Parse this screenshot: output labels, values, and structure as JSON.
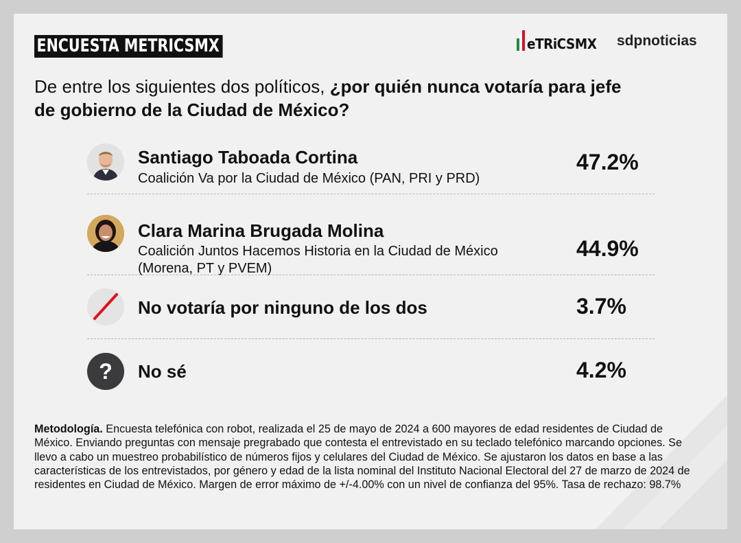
{
  "header": {
    "survey_label": "ENCUESTA METRICSMX",
    "brand_metrics": "eTRiCSMX",
    "brand_sdp": "sdpnoticias"
  },
  "question": {
    "lead": "De entre los siguientes dos políticos, ",
    "emphasis": "¿por quién nunca votaría para jefe de gobierno de la Ciudad de México?"
  },
  "options": [
    {
      "name": "Santiago Taboada Cortina",
      "coalition": "Coalición Va por la Ciudad de México (PAN, PRI y PRD)",
      "percent": "47.2%",
      "icon": "candidate-photo-icon"
    },
    {
      "name": "Clara Marina Brugada Molina",
      "coalition": "Coalición Juntos Hacemos Historia en la Ciudad de México (Morena, PT y PVEM)",
      "percent": "44.9%",
      "icon": "candidate-photo-icon"
    },
    {
      "name": "No votaría por ninguno de los dos",
      "percent": "3.7%",
      "icon": "slash-icon"
    },
    {
      "name": "No sé",
      "percent": "4.2%",
      "icon": "question-icon"
    }
  ],
  "methodology": {
    "label": "Metodología.",
    "text": " Encuesta telefónica con robot, realizada el 25 de mayo de 2024 a 600 mayores de edad residentes de Ciudad de México. Enviando preguntas con mensaje pregrabado que contesta el entrevistado en su teclado telefónico marcando opciones. Se llevo a cabo un muestreo probabilístico de números fijos y celulares del Ciudad de México. Se ajustaron los datos en base a las características de los entrevistados, por género y edad de la lista nominal del Instituto Nacional Electoral del 27 de marzo de 2024 de residentes en Ciudad de México. Margen de error máximo de +/-4.00% con un nivel de confianza del 95%. Tasa de rechazo: 98.7%"
  },
  "colors": {
    "flag_green": "#1e8a3a",
    "flag_red": "#d3122a",
    "slash_red": "#e0101e",
    "question_bg": "#3b3b3e"
  }
}
